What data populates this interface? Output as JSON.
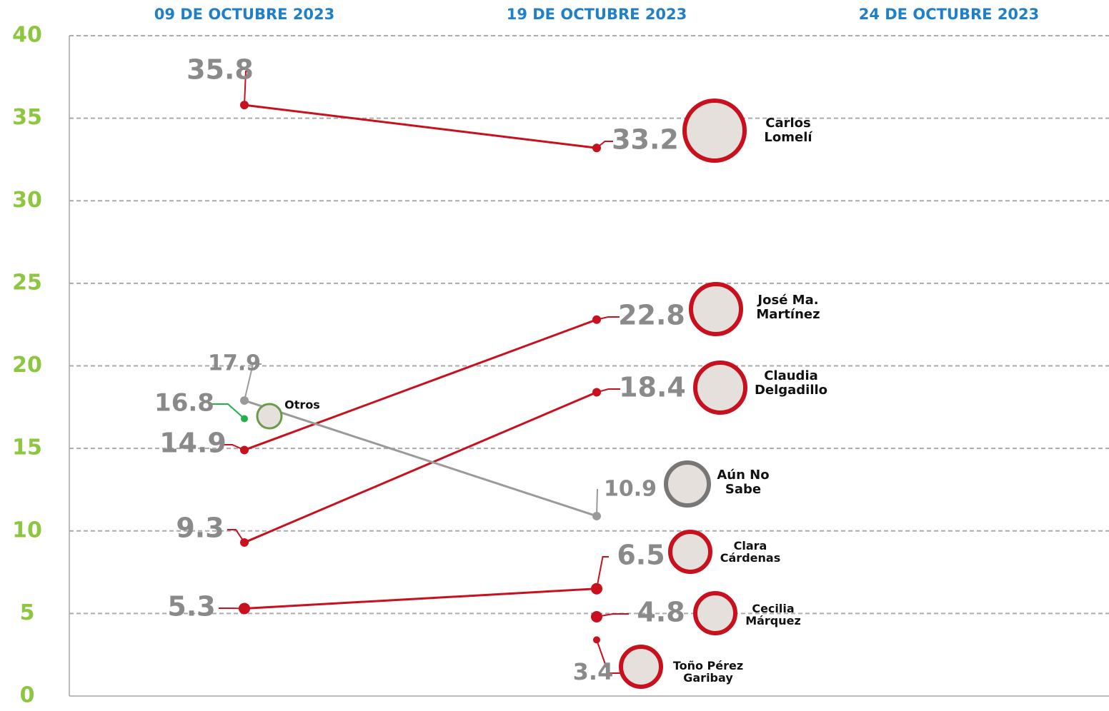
{
  "chart_data": {
    "type": "line",
    "categories": [
      "09 DE OCTUBRE 2023",
      "19 DE OCTUBRE 2023",
      "24 DE OCTUBRE 2023"
    ],
    "ylim": [
      0,
      40
    ],
    "yticks": [
      0,
      5,
      10,
      15,
      20,
      25,
      30,
      35,
      40
    ],
    "grid": true,
    "series": [
      {
        "name": "Carlos Lomelí",
        "color": "#c8101e",
        "values": [
          35.8,
          33.2,
          null
        ]
      },
      {
        "name": "José Ma. Martínez",
        "color": "#c8101e",
        "values": [
          14.9,
          22.8,
          null
        ]
      },
      {
        "name": "Claudia Delgadillo",
        "color": "#c8101e",
        "values": [
          9.3,
          18.4,
          null
        ]
      },
      {
        "name": "Aún No Sabe",
        "color": "#9a9a9a",
        "values": [
          17.9,
          10.9,
          null
        ]
      },
      {
        "name": "Otros",
        "color": "#22b04b",
        "values": [
          16.8,
          null,
          null
        ]
      },
      {
        "name": "Clara Cárdenas",
        "color": "#c8101e",
        "values": [
          5.3,
          6.5,
          null
        ]
      },
      {
        "name": "Cecilia Márquez",
        "color": "#c8101e",
        "values": [
          null,
          4.8,
          null
        ]
      },
      {
        "name": "Toño Pérez Garibay",
        "color": "#c8101e",
        "values": [
          null,
          3.4,
          null
        ]
      }
    ]
  }
}
